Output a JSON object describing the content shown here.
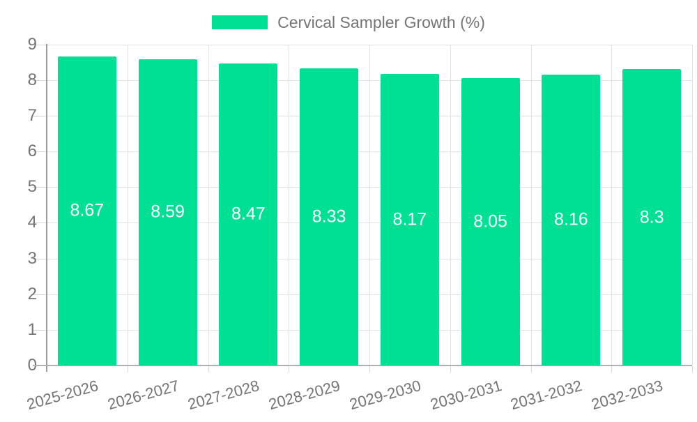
{
  "chart_data": {
    "type": "bar",
    "title": "Cervical Sampler Growth (%)",
    "categories": [
      "2025-2026",
      "2026-2027",
      "2027-2028",
      "2028-2029",
      "2029-2030",
      "2030-2031",
      "2031-2032",
      "2032-2033"
    ],
    "values": [
      8.67,
      8.59,
      8.47,
      8.33,
      8.17,
      8.05,
      8.16,
      8.3
    ],
    "value_labels": [
      "8.67",
      "8.59",
      "8.47",
      "8.33",
      "8.17",
      "8.05",
      "8.16",
      "8.3"
    ],
    "xlabel": "",
    "ylabel": "",
    "ylim": [
      0,
      9
    ],
    "ytick_labels": [
      "0",
      "1",
      "2",
      "3",
      "4",
      "5",
      "6",
      "7",
      "8",
      "9"
    ],
    "grid": true,
    "legend": {
      "position": "top-center",
      "label": "Cervical Sampler Growth (%)"
    },
    "colors": {
      "bar": "#00e094",
      "value_label": "#ffffff",
      "axis_text": "#757575",
      "gridline": "#e3e3e3",
      "tick": "#d6d6d6",
      "y_axis_line": "#9a9a9a",
      "x_axis_line": "#b0b0b0",
      "background": "#ffffff"
    }
  }
}
